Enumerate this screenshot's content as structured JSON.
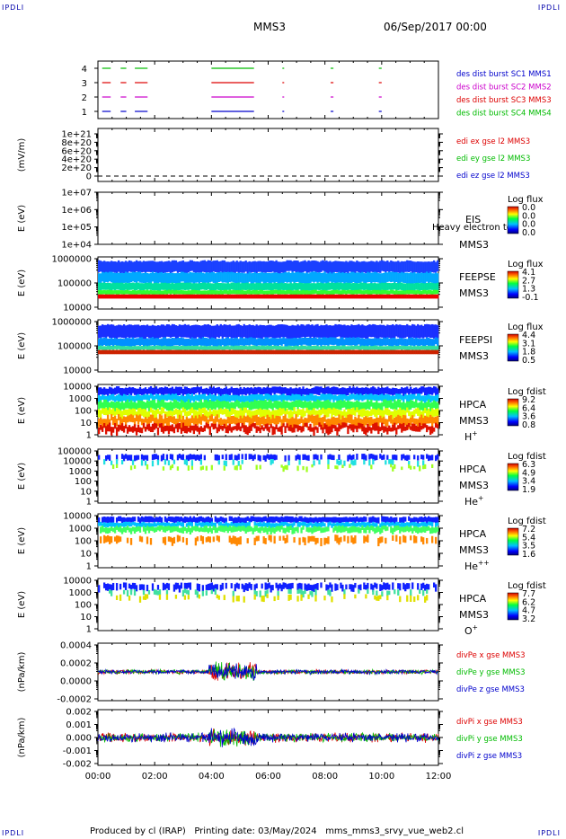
{
  "header": {
    "corner_tl": "IPDLI",
    "corner_tr": "IPDLI",
    "corner_bl": "IPDLI",
    "corner_br": "IPDLI",
    "spacecraft": "MMS3",
    "date": "06/Sep/2017 00:00"
  },
  "footer": {
    "text": "Produced by cl (IRAP)   Printing date: 03/May/2024   mms_mms3_srvy_vue_web2.cl"
  },
  "colors": {
    "blue": "#0000cc",
    "magenta": "#cc00cc",
    "red": "#dd0000",
    "green": "#00bb00"
  },
  "chart_data": [
    {
      "type": "line",
      "panel": "burst",
      "yticks": [
        "4",
        "3",
        "2",
        "1"
      ],
      "legend": [
        {
          "text": "des dist burst SC1 MMS1",
          "color": "#0000cc"
        },
        {
          "text": "des dist burst SC2 MMS2",
          "color": "#cc00cc"
        },
        {
          "text": "des dist burst SC3 MMS3",
          "color": "#dd0000"
        },
        {
          "text": "des dist burst SC4 MMS4",
          "color": "#00bb00"
        }
      ],
      "segments": [
        {
          "row": 4,
          "intervals": [
            [
              0.15,
              0.45
            ],
            [
              0.8,
              1.0
            ],
            [
              1.3,
              1.75
            ],
            [
              4.0,
              5.5
            ],
            [
              6.5,
              6.55
            ],
            [
              8.2,
              8.3
            ],
            [
              9.9,
              10.0
            ]
          ]
        },
        {
          "row": 3,
          "intervals": [
            [
              0.15,
              0.45
            ],
            [
              0.8,
              1.0
            ],
            [
              1.3,
              1.75
            ],
            [
              4.0,
              5.5
            ],
            [
              6.5,
              6.55
            ],
            [
              8.2,
              8.3
            ],
            [
              9.9,
              10.0
            ]
          ]
        },
        {
          "row": 2,
          "intervals": [
            [
              0.15,
              0.45
            ],
            [
              0.8,
              1.0
            ],
            [
              1.3,
              1.75
            ],
            [
              4.0,
              5.5
            ],
            [
              6.5,
              6.55
            ],
            [
              8.2,
              8.3
            ],
            [
              9.9,
              10.0
            ]
          ]
        },
        {
          "row": 1,
          "intervals": [
            [
              0.15,
              0.45
            ],
            [
              0.8,
              1.0
            ],
            [
              1.3,
              1.75
            ],
            [
              4.0,
              5.5
            ],
            [
              6.5,
              6.55
            ],
            [
              8.2,
              8.3
            ],
            [
              9.9,
              10.0
            ]
          ]
        }
      ]
    },
    {
      "type": "line",
      "panel": "edi",
      "ylabel": "(mV/m)",
      "yticks": [
        "1e+21",
        "8e+20",
        "6e+20",
        "4e+20",
        "2e+20",
        "0"
      ],
      "legend": [
        {
          "text": "edi ex gse l2 MMS3",
          "color": "#dd0000"
        },
        {
          "text": "edi ey gse l2 MMS3",
          "color": "#00bb00"
        },
        {
          "text": "edi ez gse l2 MMS3",
          "color": "#0000cc"
        }
      ]
    },
    {
      "type": "heatmap",
      "panel": "eis",
      "ylabel": "E (eV)",
      "yticks": [
        "1e+07",
        "1e+06",
        "1e+05",
        "1e+04"
      ],
      "labels": [
        "EIS",
        "MMS3"
      ],
      "overlay": "Heavy electron to",
      "cbar_title": "Log flux",
      "cbar_ticks": [
        "0.0",
        "0.0",
        "0.0",
        "0.0"
      ]
    },
    {
      "type": "heatmap",
      "panel": "feepse",
      "ylabel": "E (eV)",
      "yticks": [
        "1000000",
        "100000",
        "10000"
      ],
      "labels": [
        "FEEPSE",
        "MMS3"
      ],
      "cbar_title": "Log flux",
      "cbar_ticks": [
        "4.1",
        "2.7",
        "1.3",
        "-0.1"
      ]
    },
    {
      "type": "heatmap",
      "panel": "feepsi",
      "ylabel": "E (eV)",
      "yticks": [
        "1000000",
        "100000",
        "10000"
      ],
      "labels": [
        "FEEPSI",
        "MMS3"
      ],
      "cbar_title": "Log flux",
      "cbar_ticks": [
        "4.4",
        "3.1",
        "1.8",
        "0.5"
      ]
    },
    {
      "type": "heatmap",
      "panel": "hpca-h",
      "ylabel": "E (eV)",
      "yticks": [
        "10000",
        "1000",
        "100",
        "10",
        "1"
      ],
      "labels": [
        "HPCA",
        "MMS3",
        "H"
      ],
      "species_sup": "+",
      "cbar_title": "Log fdist",
      "cbar_ticks": [
        "9.2",
        "6.4",
        "3.6",
        "0.8"
      ]
    },
    {
      "type": "heatmap",
      "panel": "hpca-he1",
      "ylabel": "E (eV)",
      "yticks": [
        "100000",
        "10000",
        "1000",
        "100",
        "10",
        "1"
      ],
      "labels": [
        "HPCA",
        "MMS3",
        "He"
      ],
      "species_sup": "+",
      "cbar_title": "Log fdist",
      "cbar_ticks": [
        "6.3",
        "4.9",
        "3.4",
        "1.9"
      ]
    },
    {
      "type": "heatmap",
      "panel": "hpca-he2",
      "ylabel": "E (eV)",
      "yticks": [
        "10000",
        "1000",
        "100",
        "10",
        "1"
      ],
      "labels": [
        "HPCA",
        "MMS3",
        "He"
      ],
      "species_sup": "++",
      "cbar_title": "Log fdist",
      "cbar_ticks": [
        "7.2",
        "5.4",
        "3.5",
        "1.6"
      ]
    },
    {
      "type": "heatmap",
      "panel": "hpca-o",
      "ylabel": "E (eV)",
      "yticks": [
        "10000",
        "1000",
        "100",
        "10",
        "1"
      ],
      "labels": [
        "HPCA",
        "MMS3",
        "O"
      ],
      "species_sup": "+",
      "cbar_title": "Log fdist",
      "cbar_ticks": [
        "7.7",
        "6.2",
        "4.7",
        "3.2"
      ]
    },
    {
      "type": "line",
      "panel": "divpe",
      "ylabel": "(nPa/km)",
      "yticks": [
        "0.0004",
        "0.0002",
        "0.0000",
        "-0.0002"
      ],
      "legend": [
        {
          "text": "divPe x gse MMS3",
          "color": "#dd0000"
        },
        {
          "text": "divPe y gse MMS3",
          "color": "#00bb00"
        },
        {
          "text": "divPe z gse MMS3",
          "color": "#0000cc"
        }
      ]
    },
    {
      "type": "line",
      "panel": "divpi",
      "ylabel": "(nPa/km)",
      "yticks": [
        "0.002",
        "0.001",
        "0.000",
        "-0.001",
        "-0.002"
      ],
      "legend": [
        {
          "text": "divPi x gse MMS3",
          "color": "#dd0000"
        },
        {
          "text": "divPi y gse MMS3",
          "color": "#00bb00"
        },
        {
          "text": "divPi z gse MMS3",
          "color": "#0000cc"
        }
      ],
      "xticks": [
        "00:00",
        "02:00",
        "04:00",
        "06:00",
        "08:00",
        "10:00",
        "12:00"
      ]
    }
  ]
}
